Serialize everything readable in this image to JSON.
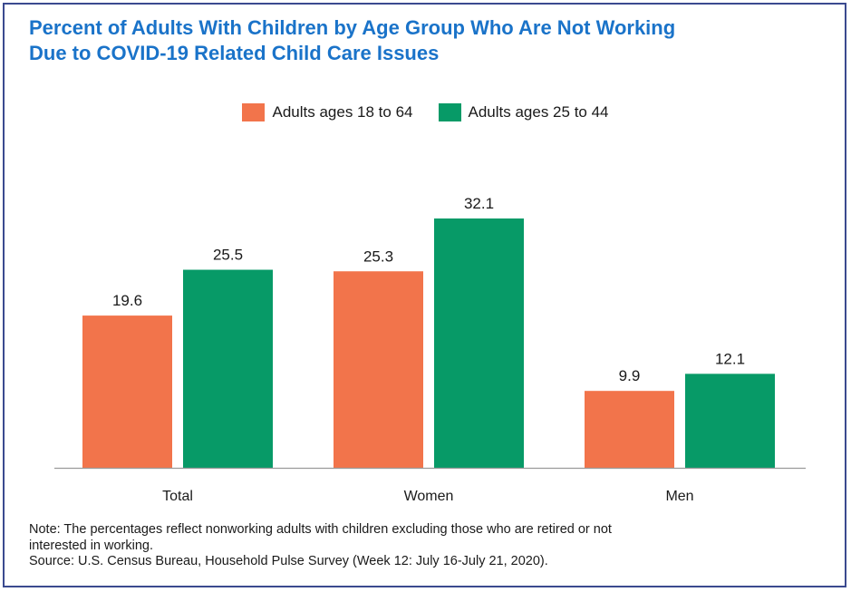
{
  "title_lines": [
    "Percent of Adults With Children by Age Group Who Are Not Working",
    "Due to COVID-19 Related Child Care Issues"
  ],
  "colors": {
    "title": "#1a73c9",
    "series_1": "#f2744b",
    "series_2": "#079a67",
    "axis": "#9a9a9a",
    "frame": "#3b4a8f"
  },
  "notes": {
    "note_line_1": "Note: The percentages reflect nonworking adults with children excluding those who are retired or not",
    "note_line_2": "interested in working.",
    "source": "Source: U.S. Census Bureau, Household Pulse Survey (Week 12: July 16-July 21, 2020)."
  },
  "chart_data": {
    "type": "bar",
    "title": "Percent of Adults With Children by Age Group Who Are Not Working Due to COVID-19 Related Child Care Issues",
    "categories": [
      "Total",
      "Women",
      "Men"
    ],
    "series": [
      {
        "name": "Adults ages 18 to 64",
        "values": [
          19.6,
          25.3,
          9.9
        ]
      },
      {
        "name": "Adults ages 25 to 44",
        "values": [
          25.5,
          32.1,
          12.1
        ]
      }
    ],
    "xlabel": "",
    "ylabel": "",
    "ylim": [
      0,
      32.1
    ],
    "grid": false,
    "legend_position": "top-center"
  }
}
